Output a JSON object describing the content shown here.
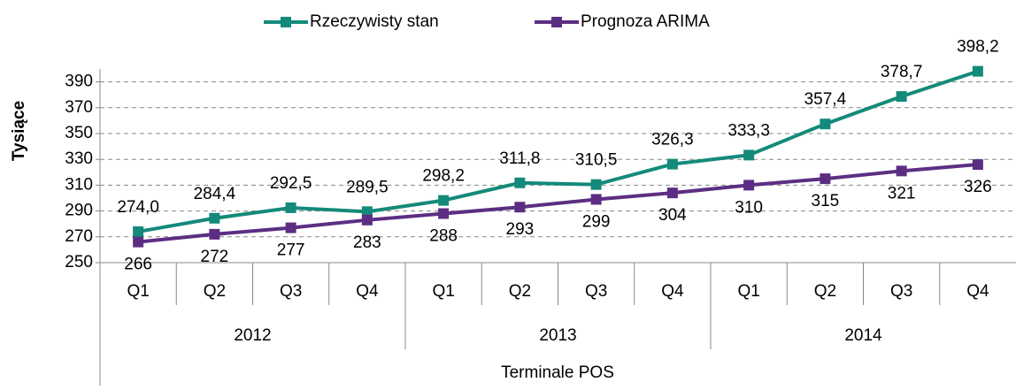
{
  "chart_data": {
    "type": "line",
    "x_label": "Terminale POS",
    "y_label": "Tysiące",
    "categories": [
      "Q1",
      "Q2",
      "Q3",
      "Q4",
      "Q1",
      "Q2",
      "Q3",
      "Q4",
      "Q1",
      "Q2",
      "Q3",
      "Q4"
    ],
    "year_groups": [
      "2012",
      "2013",
      "2014"
    ],
    "series": [
      {
        "name": "Rzeczywisty stan",
        "color": "#148a7a",
        "values": [
          274.0,
          284.4,
          292.5,
          289.5,
          298.2,
          311.8,
          310.5,
          326.3,
          333.3,
          357.4,
          378.7,
          398.2
        ],
        "value_labels": [
          "274,0",
          "284,4",
          "292,5",
          "289,5",
          "298,2",
          "311,8",
          "310,5",
          "326,3",
          "333,3",
          "357,4",
          "378,7",
          "398,2"
        ]
      },
      {
        "name": "Prognoza ARIMA",
        "color": "#5c2e83",
        "values": [
          266,
          272,
          277,
          283,
          288,
          293,
          299,
          304,
          310,
          315,
          321,
          326
        ]
      }
    ],
    "ylim": [
      250,
      400
    ],
    "yticks": [
      250,
      270,
      290,
      310,
      330,
      350,
      370,
      390
    ],
    "grid": true,
    "legend": "top"
  }
}
